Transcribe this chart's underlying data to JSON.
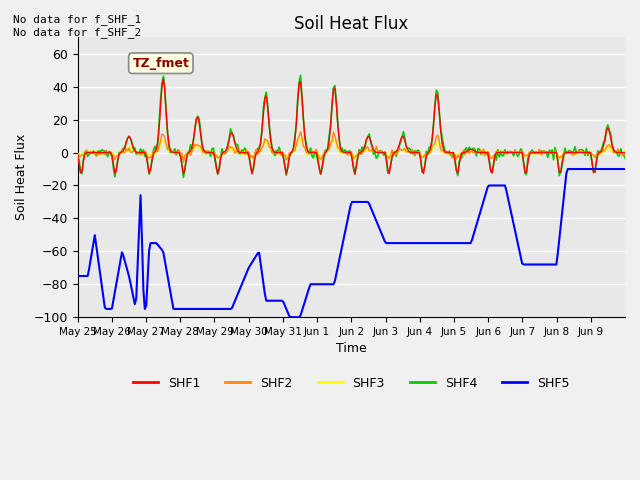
{
  "title": "Soil Heat Flux",
  "ylabel": "Soil Heat Flux",
  "xlabel": "Time",
  "ylim": [
    -100,
    70
  ],
  "annotation_text": "No data for f_SHF_1\nNo data for f_SHF_2",
  "box_label": "TZ_fmet",
  "colors": {
    "SHF1": "#ff0000",
    "SHF2": "#ff8800",
    "SHF3": "#ffff00",
    "SHF4": "#00cc00",
    "SHF5": "#0000ff"
  },
  "bg_color": "#e8e8e8",
  "x_tick_labels": [
    "May 25",
    "May 26",
    "May 27",
    "May 28",
    "May 29",
    "May 30",
    "May 31",
    "Jun 1",
    "Jun 2",
    "Jun 3",
    "Jun 4",
    "Jun 5",
    "Jun 6",
    "Jun 7",
    "Jun 8",
    "Jun 9"
  ],
  "yticks": [
    -100,
    -80,
    -60,
    -40,
    -20,
    0,
    20,
    40,
    60
  ],
  "shf5_xp": [
    0,
    0.3,
    0.5,
    0.8,
    1.0,
    1.3,
    1.5,
    1.7,
    1.85,
    1.9,
    1.95,
    2.0,
    2.1,
    2.3,
    2.5,
    2.8,
    3.0,
    3.3,
    3.5,
    4.0,
    4.5,
    5.0,
    5.3,
    5.5,
    5.8,
    6.0,
    6.2,
    6.5,
    6.8,
    7.0,
    7.5,
    8.0,
    8.5,
    9.0,
    9.5,
    10.0,
    10.5,
    11.0,
    11.5,
    12.0,
    12.5,
    13.0,
    13.5,
    14.0,
    14.3,
    14.5,
    14.7,
    14.9,
    15.0,
    15.5,
    16.0
  ],
  "shf5_fp": [
    -75,
    -75,
    -50,
    -95,
    -95,
    -60,
    -75,
    -95,
    -20,
    -75,
    -95,
    -95,
    -55,
    -55,
    -60,
    -95,
    -95,
    -95,
    -95,
    -95,
    -95,
    -70,
    -60,
    -90,
    -90,
    -90,
    -100,
    -100,
    -80,
    -80,
    -80,
    -30,
    -30,
    -55,
    -55,
    -55,
    -55,
    -55,
    -55,
    -20,
    -20,
    -68,
    -68,
    -68,
    -10,
    -10,
    -10,
    -10,
    -10,
    -10,
    -10
  ]
}
